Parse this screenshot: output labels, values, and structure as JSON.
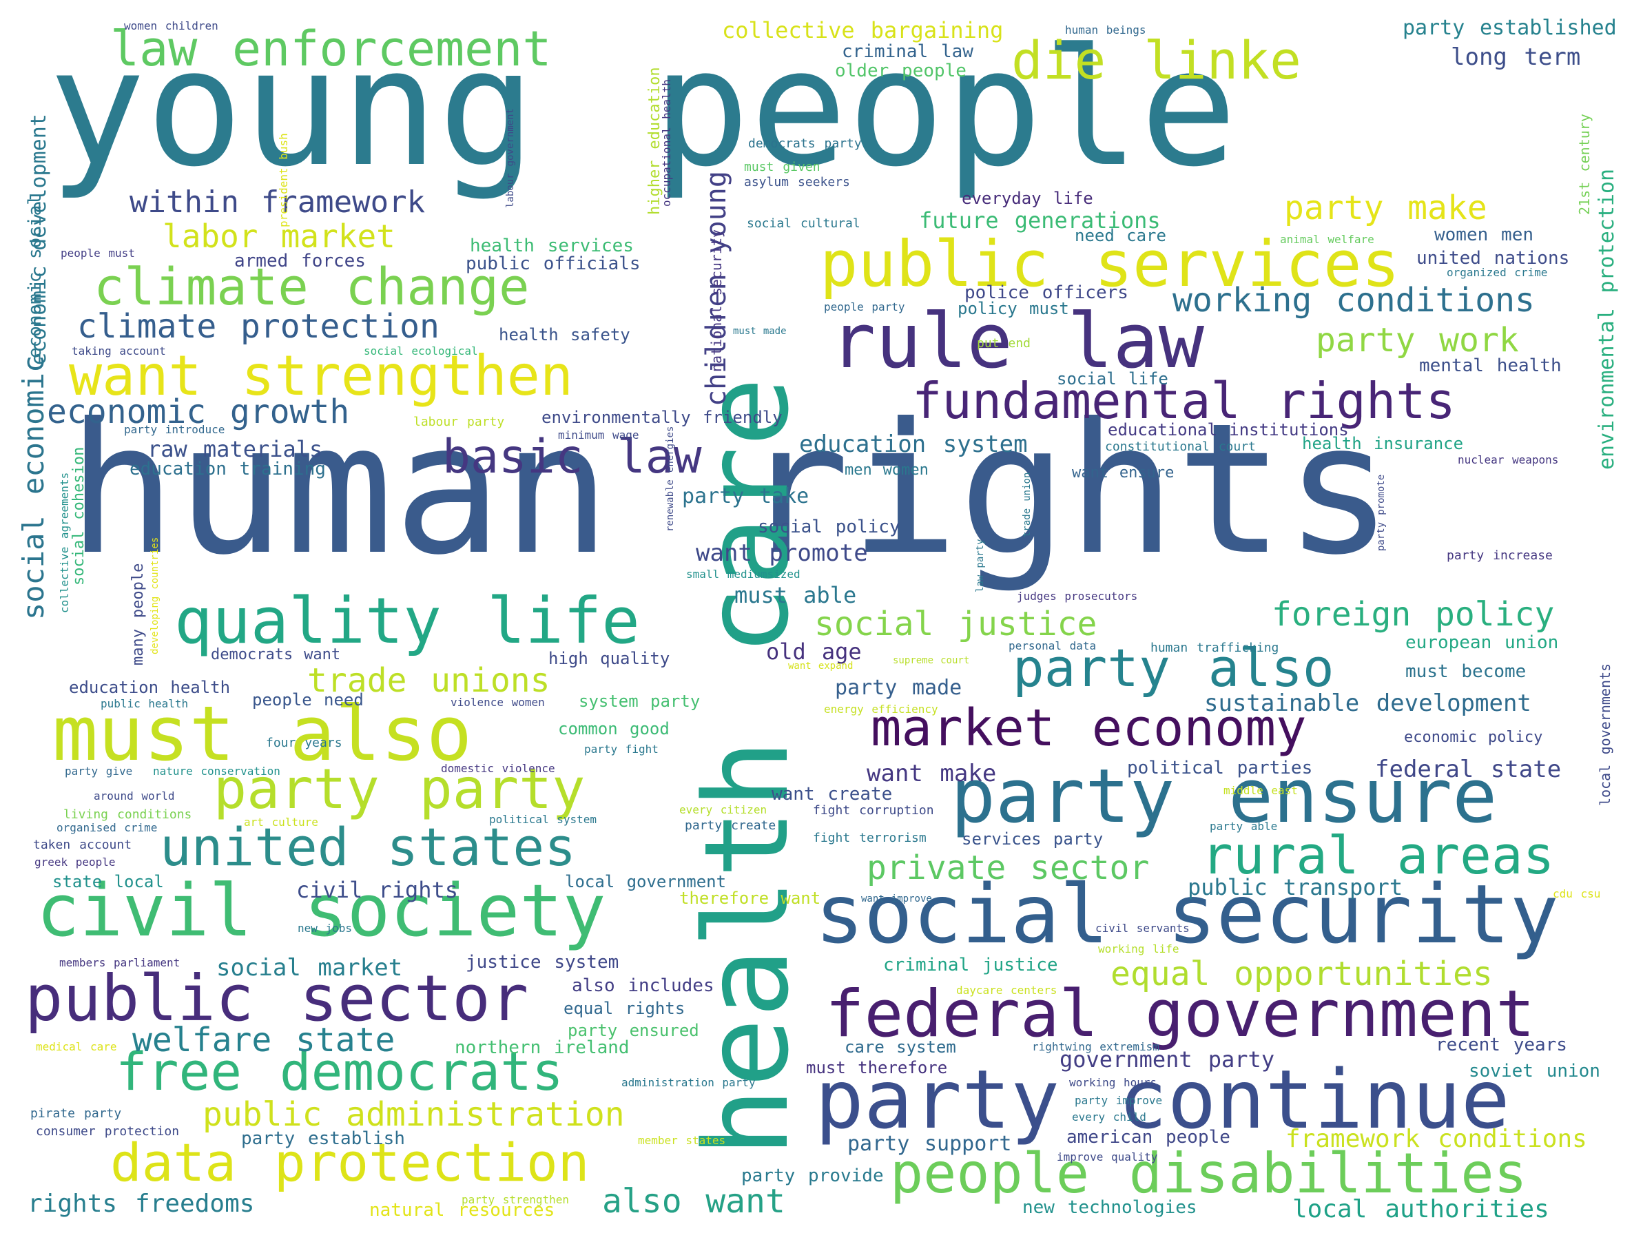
{
  "words": [
    {
      "id": "young-people",
      "text": "young people",
      "color": "#2c7b8e"
    },
    {
      "id": "human-rights",
      "text": "human rights",
      "color": "#3a5b8c"
    },
    {
      "id": "health-care",
      "text": "health care",
      "color": "#21a088"
    },
    {
      "id": "party-continue",
      "text": "party continue",
      "color": "#3b4f8c"
    },
    {
      "id": "social-security",
      "text": "social security",
      "color": "#335f8d"
    },
    {
      "id": "federal-government",
      "text": "federal government",
      "color": "#481f6f"
    },
    {
      "id": "civil-society",
      "text": "civil society",
      "color": "#3fbc73"
    },
    {
      "id": "public-sector",
      "text": "public sector",
      "color": "#472d7b"
    },
    {
      "id": "must-also",
      "text": "must also",
      "color": "#c5e021"
    },
    {
      "id": "party-ensure",
      "text": "party ensure",
      "color": "#2c718e"
    },
    {
      "id": "data-protection",
      "text": "data protection",
      "color": "#dde318"
    },
    {
      "id": "people-disabilities",
      "text": "people disabilities",
      "color": "#6ccd5a"
    },
    {
      "id": "united-states",
      "text": "united states",
      "color": "#2c8d8b"
    },
    {
      "id": "rule-law",
      "text": "rule law",
      "color": "#46327e"
    },
    {
      "id": "public-services",
      "text": "public services",
      "color": "#dfe318"
    },
    {
      "id": "free-democrats",
      "text": "free democrats",
      "color": "#31b57b"
    },
    {
      "id": "quality-life",
      "text": "quality life",
      "color": "#22a785"
    },
    {
      "id": "climate-change",
      "text": "climate change",
      "color": "#7ad151"
    },
    {
      "id": "want-strengthen",
      "text": "want strengthen",
      "color": "#e7e419"
    },
    {
      "id": "party-party",
      "text": "party party",
      "color": "#b5de2b"
    },
    {
      "id": "market-economy",
      "text": "market economy",
      "color": "#440f5e"
    },
    {
      "id": "fundamental-rights",
      "text": "fundamental rights",
      "color": "#482576"
    },
    {
      "id": "party-also",
      "text": "party also",
      "color": "#25838e"
    },
    {
      "id": "rural-areas",
      "text": "rural areas",
      "color": "#23a983"
    },
    {
      "id": "law-enforcement",
      "text": "law enforcement",
      "color": "#5ec962"
    },
    {
      "id": "die-linke",
      "text": "die linke",
      "color": "#c2df23"
    },
    {
      "id": "public-administration",
      "text": "public administration",
      "color": "#cfe11c"
    },
    {
      "id": "basic-law",
      "text": "basic law",
      "color": "#453781"
    },
    {
      "id": "welfare-state",
      "text": "welfare state",
      "color": "#26818e"
    },
    {
      "id": "also-want",
      "text": "also want",
      "color": "#25a186"
    },
    {
      "id": "economic-growth",
      "text": "economic growth",
      "color": "#33628d"
    },
    {
      "id": "climate-protection",
      "text": "climate protection",
      "color": "#355e8d"
    },
    {
      "id": "working-conditions",
      "text": "working conditions",
      "color": "#2d708e"
    },
    {
      "id": "foreign-policy",
      "text": "foreign policy",
      "color": "#29af7f"
    },
    {
      "id": "trade-unions",
      "text": "trade unions",
      "color": "#bddf26"
    },
    {
      "id": "social-justice",
      "text": "social justice",
      "color": "#84d44b"
    },
    {
      "id": "private-sector",
      "text": "private sector",
      "color": "#5cc863"
    },
    {
      "id": "equal-opportunities",
      "text": "equal opportunities",
      "color": "#b0dd2f"
    },
    {
      "id": "within-framework",
      "text": "within framework",
      "color": "#3e4a89"
    },
    {
      "id": "labor-market",
      "text": "labor market",
      "color": "#d2e21b"
    },
    {
      "id": "party-make",
      "text": "party make",
      "color": "#e5e419"
    },
    {
      "id": "party-work",
      "text": "party work",
      "color": "#90d743"
    },
    {
      "id": "children-young",
      "text": "children young",
      "color": "#424086"
    },
    {
      "id": "social-economic",
      "text": "social economic",
      "color": "#2b758e"
    },
    {
      "id": "collective-bargaining",
      "text": "collective bargaining",
      "color": "#d8e219"
    },
    {
      "id": "long-term",
      "text": "long term",
      "color": "#3d4e8a"
    },
    {
      "id": "party-established",
      "text": "party established",
      "color": "#26828e"
    },
    {
      "id": "economic-development",
      "text": "economic development",
      "color": "#2a788e"
    },
    {
      "id": "environmental-protection",
      "text": "environmental protection",
      "color": "#29af7f"
    },
    {
      "id": "future-generations",
      "text": "future generations",
      "color": "#3bbb75"
    },
    {
      "id": "education-system",
      "text": "education system",
      "color": "#2d708e"
    },
    {
      "id": "want-promote",
      "text": "want promote",
      "color": "#3e4989"
    },
    {
      "id": "sustainable-development",
      "text": "sustainable development",
      "color": "#2f6c8e"
    },
    {
      "id": "want-make",
      "text": "want make",
      "color": "#453882"
    },
    {
      "id": "federal-state",
      "text": "federal state",
      "color": "#3f4788"
    },
    {
      "id": "civil-rights",
      "text": "civil rights",
      "color": "#3d4d8a"
    },
    {
      "id": "social-market",
      "text": "social market",
      "color": "#277f8e"
    },
    {
      "id": "rights-freedoms",
      "text": "rights freedoms",
      "color": "#277e8e"
    },
    {
      "id": "local-authorities",
      "text": "local authorities",
      "color": "#1fa187"
    },
    {
      "id": "framework-conditions",
      "text": "framework conditions",
      "color": "#cae11f"
    },
    {
      "id": "party-support",
      "text": "party support",
      "color": "#31678e"
    },
    {
      "id": "must-able",
      "text": "must able",
      "color": "#2a778e"
    },
    {
      "id": "old-age",
      "text": "old age",
      "color": "#46327e"
    },
    {
      "id": "party-made",
      "text": "party made",
      "color": "#355f8d"
    },
    {
      "id": "party-take",
      "text": "party take",
      "color": "#2c738e"
    },
    {
      "id": "social-policy",
      "text": "social policy",
      "color": "#3b528b"
    },
    {
      "id": "raw-materials",
      "text": "raw materials",
      "color": "#3b518b"
    },
    {
      "id": "education-training",
      "text": "education training",
      "color": "#2d708e"
    },
    {
      "id": "public-officials",
      "text": "public officials",
      "color": "#3b528b"
    },
    {
      "id": "health-services",
      "text": "health services",
      "color": "#3dbc74"
    },
    {
      "id": "armed-forces",
      "text": "armed forces",
      "color": "#404588"
    },
    {
      "id": "criminal-law",
      "text": "criminal law",
      "color": "#33638d"
    },
    {
      "id": "older-people",
      "text": "older people",
      "color": "#52c569"
    },
    {
      "id": "everyday-life",
      "text": "everyday life",
      "color": "#472c7a"
    },
    {
      "id": "united-nations",
      "text": "united nations",
      "color": "#3e4c8a"
    },
    {
      "id": "women-men",
      "text": "women men",
      "color": "#355f8d"
    },
    {
      "id": "mental-health",
      "text": "mental health",
      "color": "#3c4f8a"
    },
    {
      "id": "police-officers",
      "text": "police officers",
      "color": "#3f4889"
    },
    {
      "id": "policy-must",
      "text": "policy must",
      "color": "#2a788e"
    },
    {
      "id": "social-life",
      "text": "social life",
      "color": "#2e6f8e"
    },
    {
      "id": "educational-institutions",
      "text": "educational institutions",
      "color": "#443b84"
    },
    {
      "id": "health-insurance",
      "text": "health insurance",
      "color": "#20a386"
    },
    {
      "id": "environmentally-friendly",
      "text": "environmentally friendly",
      "color": "#3e4a89"
    },
    {
      "id": "health-safety",
      "text": "health safety",
      "color": "#3a548c"
    },
    {
      "id": "men-women",
      "text": "men women",
      "color": "#2a788e"
    },
    {
      "id": "want-ensure",
      "text": "want ensure",
      "color": "#33638d"
    },
    {
      "id": "european-union",
      "text": "european union",
      "color": "#22a884"
    },
    {
      "id": "must-become",
      "text": "must become",
      "color": "#2c738e"
    },
    {
      "id": "economic-policy",
      "text": "economic policy",
      "color": "#3e4989"
    },
    {
      "id": "political-parties",
      "text": "political parties",
      "color": "#3b528b"
    },
    {
      "id": "recent-years",
      "text": "recent years",
      "color": "#3e4c8a"
    },
    {
      "id": "soviet-union",
      "text": "soviet union",
      "color": "#23898e"
    },
    {
      "id": "government-party",
      "text": "government party",
      "color": "#433e85"
    },
    {
      "id": "american-people",
      "text": "american people",
      "color": "#3f4788"
    },
    {
      "id": "new-technologies",
      "text": "new technologies",
      "color": "#21918c"
    },
    {
      "id": "party-provide",
      "text": "party provide",
      "color": "#297a8e"
    },
    {
      "id": "want-create",
      "text": "want create",
      "color": "#3c508b"
    },
    {
      "id": "services-party",
      "text": "services party",
      "color": "#3a548c"
    },
    {
      "id": "public-transport",
      "text": "public transport",
      "color": "#2a778e"
    },
    {
      "id": "criminal-justice",
      "text": "criminal justice",
      "color": "#20a486"
    },
    {
      "id": "justice-system",
      "text": "justice system",
      "color": "#3f4889"
    },
    {
      "id": "also-includes",
      "text": "also includes",
      "color": "#433e85"
    },
    {
      "id": "equal-rights",
      "text": "equal rights",
      "color": "#31688e"
    },
    {
      "id": "northern-ireland",
      "text": "northern ireland",
      "color": "#43bf71"
    },
    {
      "id": "party-ensured",
      "text": "party ensured",
      "color": "#4ac16d"
    },
    {
      "id": "natural-resources",
      "text": "natural resources",
      "color": "#e2e418"
    },
    {
      "id": "party-establish",
      "text": "party establish",
      "color": "#2e6e8e"
    },
    {
      "id": "care-system",
      "text": "care system",
      "color": "#2f6b8e"
    },
    {
      "id": "must-therefore",
      "text": "must therefore",
      "color": "#46337f"
    },
    {
      "id": "education-health",
      "text": "education health",
      "color": "#3d4d8a"
    },
    {
      "id": "people-need",
      "text": "people need",
      "color": "#39568c"
    },
    {
      "id": "system-party",
      "text": "system party",
      "color": "#44bf70"
    },
    {
      "id": "common-good",
      "text": "common good",
      "color": "#3cbb75"
    },
    {
      "id": "high-quality",
      "text": "high quality",
      "color": "#3e4a89"
    },
    {
      "id": "democrats-want",
      "text": "democrats want",
      "color": "#3e4c8a"
    },
    {
      "id": "local-government",
      "text": "local government",
      "color": "#2e6e8e"
    },
    {
      "id": "therefore-want",
      "text": "therefore want",
      "color": "#c0df25"
    },
    {
      "id": "state-local",
      "text": "state local",
      "color": "#21918c"
    },
    {
      "id": "social-cohesion",
      "text": "social cohesion",
      "color": "#35b779"
    },
    {
      "id": "economic-social",
      "text": "economic social",
      "color": "#2a788e"
    },
    {
      "id": "many-people",
      "text": "many people",
      "color": "#3e4a89"
    },
    {
      "id": "higher-education",
      "text": "higher education",
      "color": "#b2dd2d"
    },
    {
      "id": "national-security",
      "text": "national security",
      "color": "#453781"
    },
    {
      "id": "democrats-party",
      "text": "democrats party",
      "color": "#2c738e"
    },
    {
      "id": "must-given",
      "text": "must given",
      "color": "#5ac864"
    },
    {
      "id": "asylum-seekers",
      "text": "asylum seekers",
      "color": "#3b528b"
    },
    {
      "id": "social-cultural",
      "text": "social cultural",
      "color": "#2a788e"
    },
    {
      "id": "need-care",
      "text": "need care",
      "color": "#2a788e"
    },
    {
      "id": "21st-century",
      "text": "21st century",
      "color": "#74d055"
    },
    {
      "id": "animal-welfare",
      "text": "animal welfare",
      "color": "#65cb5e"
    },
    {
      "id": "organized-crime",
      "text": "organized crime",
      "color": "#2a788e"
    },
    {
      "id": "people-party",
      "text": "people party",
      "color": "#31688e"
    },
    {
      "id": "must-made",
      "text": "must made",
      "color": "#2a788e"
    },
    {
      "id": "put-end",
      "text": "put end",
      "color": "#a2da37"
    },
    {
      "id": "social-ecological",
      "text": "social ecological",
      "color": "#35b779"
    },
    {
      "id": "taking-account",
      "text": "taking account",
      "color": "#3e4a89"
    },
    {
      "id": "people-must",
      "text": "people must",
      "color": "#433e85"
    },
    {
      "id": "women-children",
      "text": "women children",
      "color": "#3e4a89"
    },
    {
      "id": "human-beings",
      "text": "human beings",
      "color": "#31688e"
    },
    {
      "id": "president-bush",
      "text": "president bush",
      "color": "#dde318"
    },
    {
      "id": "labour-government",
      "text": "labour government",
      "color": "#3e4a89"
    },
    {
      "id": "occupational-health",
      "text": "occupational health",
      "color": "#453781"
    },
    {
      "id": "labour-party",
      "text": "labour party",
      "color": "#bddf26"
    },
    {
      "id": "party-introduce",
      "text": "party introduce",
      "color": "#31688e"
    },
    {
      "id": "minimum-wage",
      "text": "minimum wage",
      "color": "#3e4a89"
    },
    {
      "id": "constitutional-court",
      "text": "constitutional court",
      "color": "#2a788e"
    },
    {
      "id": "nuclear-weapons",
      "text": "nuclear weapons",
      "color": "#453781"
    },
    {
      "id": "renewable-energies",
      "text": "renewable energies",
      "color": "#3e4a89"
    },
    {
      "id": "small-mediumsized",
      "text": "small mediumsized",
      "color": "#21918c"
    },
    {
      "id": "judges-prosecutors",
      "text": "judges prosecutors",
      "color": "#453781"
    },
    {
      "id": "trade-union",
      "text": "trade union",
      "color": "#2a788e"
    },
    {
      "id": "law-party",
      "text": "law party",
      "color": "#2a788e"
    },
    {
      "id": "party-promote",
      "text": "party promote",
      "color": "#3e4a89"
    },
    {
      "id": "party-increase",
      "text": "party increase",
      "color": "#453781"
    },
    {
      "id": "collective-agreements",
      "text": "collective agreements",
      "color": "#21918c"
    },
    {
      "id": "developing-countries",
      "text": "developing countries",
      "color": "#e2e418"
    },
    {
      "id": "local-governments",
      "text": "local governments",
      "color": "#3e4a89"
    },
    {
      "id": "personal-data",
      "text": "personal data",
      "color": "#31688e"
    },
    {
      "id": "human-trafficking",
      "text": "human trafficking",
      "color": "#2a788e"
    },
    {
      "id": "supreme-court",
      "text": "supreme court",
      "color": "#b8de29"
    },
    {
      "id": "want-expand",
      "text": "want expand",
      "color": "#d5e21a"
    },
    {
      "id": "public-health",
      "text": "public health",
      "color": "#2a788e"
    },
    {
      "id": "violence-women",
      "text": "violence women",
      "color": "#3e4a89"
    },
    {
      "id": "energy-efficiency",
      "text": "energy efficiency",
      "color": "#c5e021"
    },
    {
      "id": "party-give",
      "text": "party give",
      "color": "#31688e"
    },
    {
      "id": "four-years",
      "text": "four years",
      "color": "#2a788e"
    },
    {
      "id": "nature-conservation",
      "text": "nature conservation",
      "color": "#21918c"
    },
    {
      "id": "domestic-violence",
      "text": "domestic violence",
      "color": "#453781"
    },
    {
      "id": "party-fight",
      "text": "party fight",
      "color": "#2a788e"
    },
    {
      "id": "around-world",
      "text": "around world",
      "color": "#3e4a89"
    },
    {
      "id": "living-conditions",
      "text": "living conditions",
      "color": "#7ad151"
    },
    {
      "id": "art-culture",
      "text": "art culture",
      "color": "#cae11f"
    },
    {
      "id": "organised-crime",
      "text": "organised crime",
      "color": "#31688e"
    },
    {
      "id": "political-system",
      "text": "political system",
      "color": "#2a788e"
    },
    {
      "id": "every-citizen",
      "text": "every citizen",
      "color": "#b5de2b"
    },
    {
      "id": "fight-corruption",
      "text": "fight corruption",
      "color": "#3e4a89"
    },
    {
      "id": "middle-east",
      "text": "middle east",
      "color": "#c5e021"
    },
    {
      "id": "party-create",
      "text": "party create",
      "color": "#31688e"
    },
    {
      "id": "fight-terrorism",
      "text": "fight terrorism",
      "color": "#2a788e"
    },
    {
      "id": "party-able",
      "text": "party able",
      "color": "#2a788e"
    },
    {
      "id": "taken-account",
      "text": "taken account",
      "color": "#3e4a89"
    },
    {
      "id": "greek-people",
      "text": "greek people",
      "color": "#453781"
    },
    {
      "id": "want-improve",
      "text": "want improve",
      "color": "#31688e"
    },
    {
      "id": "cdu-csu",
      "text": "cdu csu",
      "color": "#dde318"
    },
    {
      "id": "new-jobs",
      "text": "new jobs",
      "color": "#2a788e"
    },
    {
      "id": "civil-servants",
      "text": "civil servants",
      "color": "#3e4a89"
    },
    {
      "id": "working-life",
      "text": "working life",
      "color": "#b5de2b"
    },
    {
      "id": "members-parliament",
      "text": "members parliament",
      "color": "#453781"
    },
    {
      "id": "daycare-centers",
      "text": "daycare centers",
      "color": "#cae11f"
    },
    {
      "id": "medical-care",
      "text": "medical care",
      "color": "#dde318"
    },
    {
      "id": "rightwing-extremism",
      "text": "rightwing extremism",
      "color": "#31688e"
    },
    {
      "id": "administration-party",
      "text": "administration party",
      "color": "#2a788e"
    },
    {
      "id": "working-hours",
      "text": "working hours",
      "color": "#3e4a89"
    },
    {
      "id": "pirate-party",
      "text": "pirate party",
      "color": "#31688e"
    },
    {
      "id": "party-improve",
      "text": "party improve",
      "color": "#2a788e"
    },
    {
      "id": "consumer-protection",
      "text": "consumer protection",
      "color": "#3e4a89"
    },
    {
      "id": "every-child",
      "text": "every child",
      "color": "#2a788e"
    },
    {
      "id": "member-states",
      "text": "member states",
      "color": "#cae11f"
    },
    {
      "id": "improve-quality",
      "text": "improve quality",
      "color": "#3e4a89"
    },
    {
      "id": "party-strengthen",
      "text": "party strengthen",
      "color": "#b5de2b"
    }
  ]
}
